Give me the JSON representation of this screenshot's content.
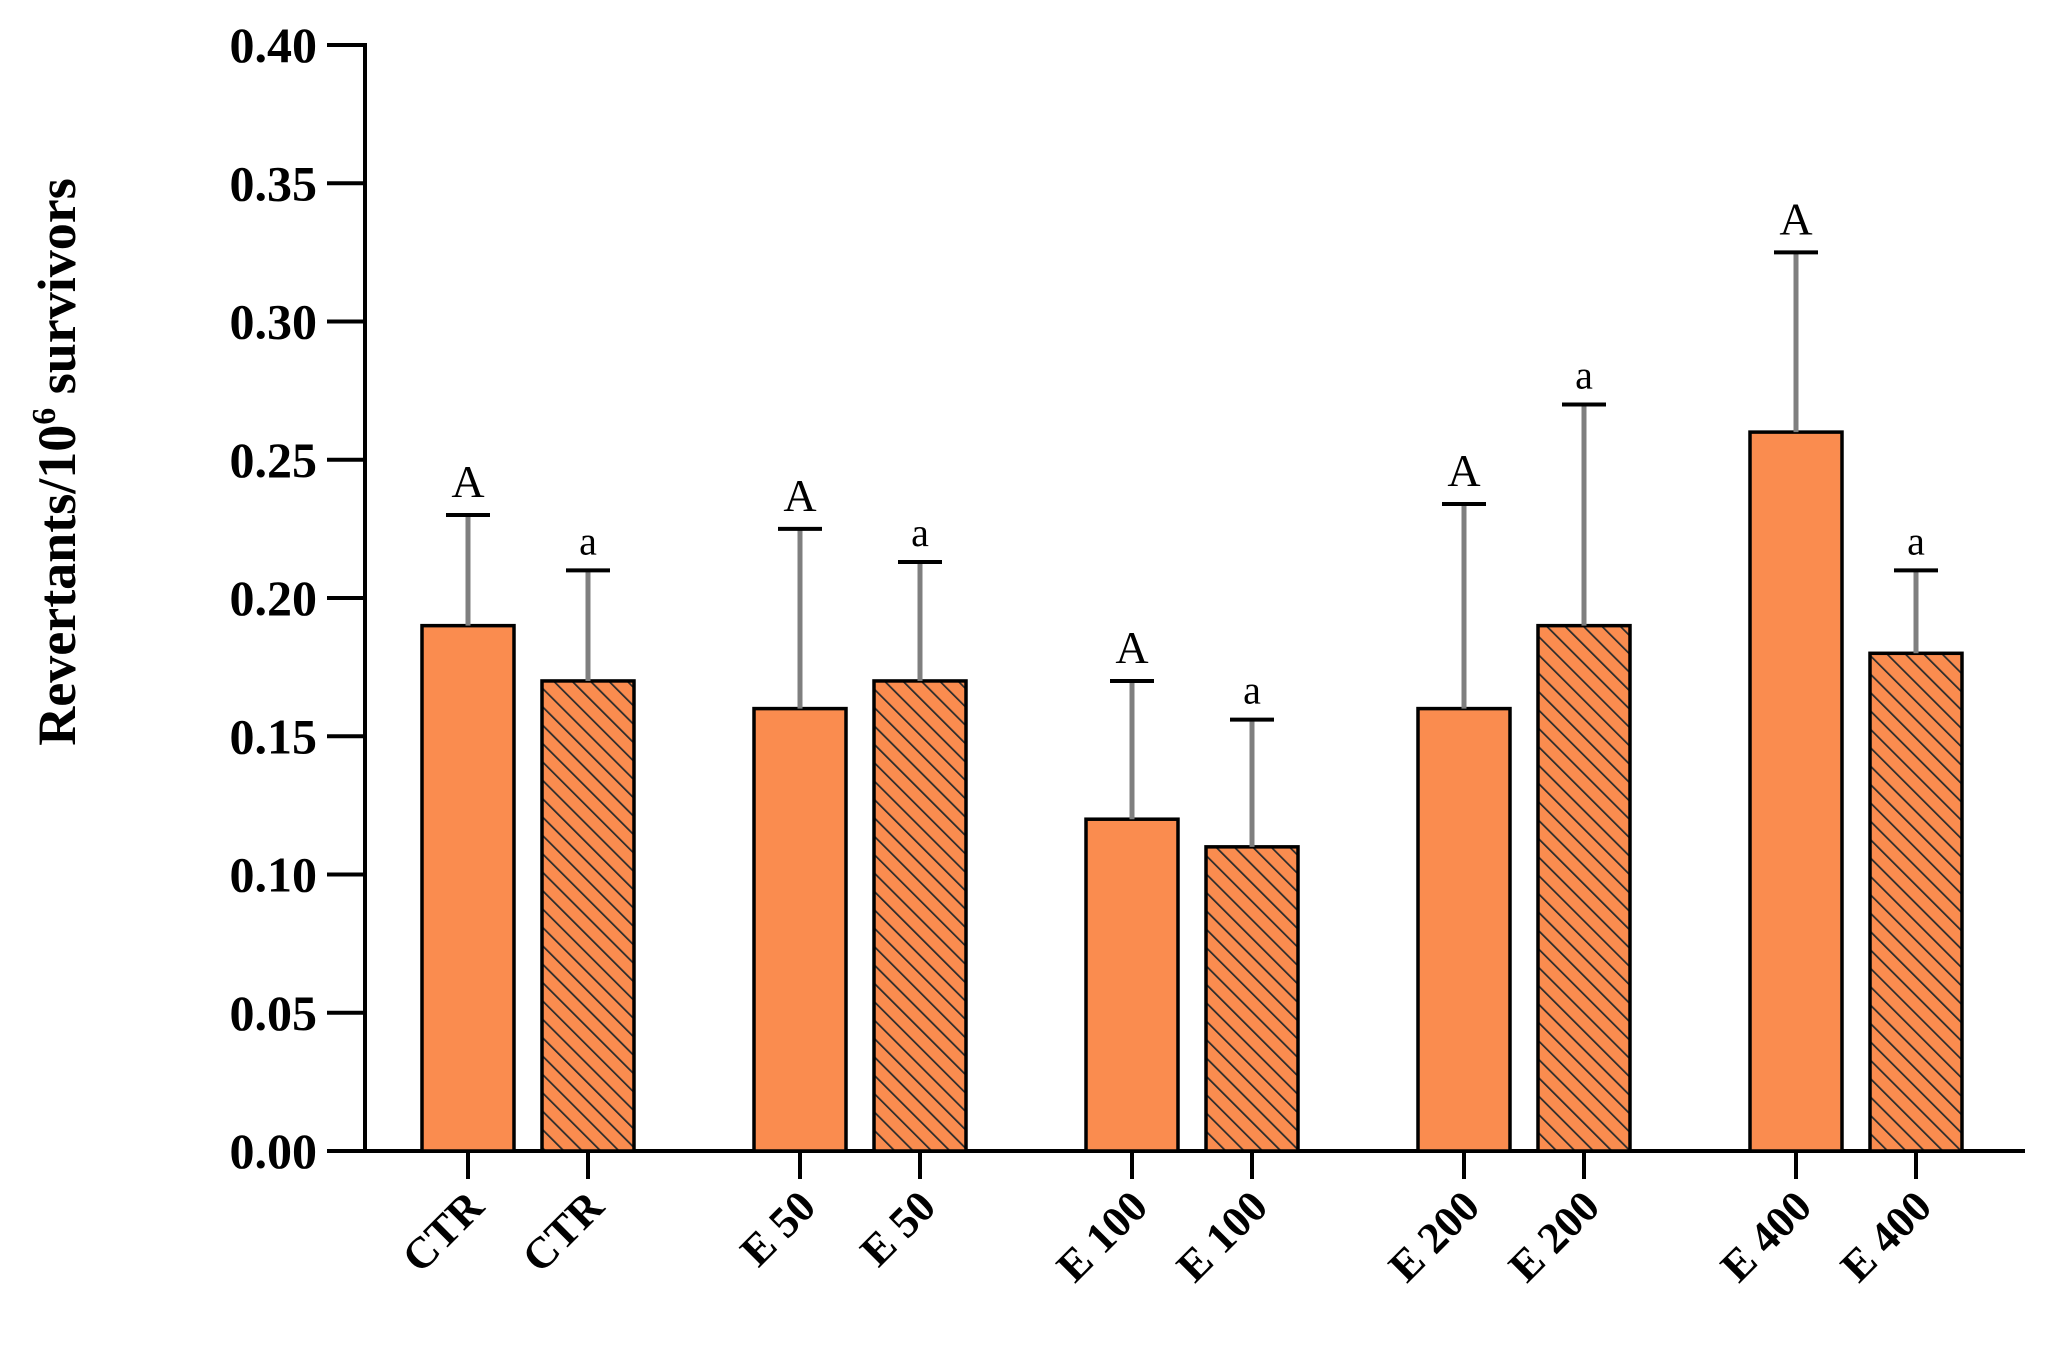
{
  "chart_data": {
    "type": "bar",
    "title": "",
    "xlabel": "",
    "ylabel": {
      "text": "Revertants/10",
      "superscript": "6",
      "suffix": " survivors"
    },
    "ylim": [
      0,
      0.4
    ],
    "yticks": [
      "0.00",
      "0.05",
      "0.10",
      "0.15",
      "0.20",
      "0.25",
      "0.30",
      "0.35",
      "0.40"
    ],
    "grid": false,
    "bar_color": "#fa8c4f",
    "hatch_color": "#2b2b2b",
    "error_color": "#7f7f7f",
    "bars": [
      {
        "category": "CTR",
        "value": 0.19,
        "error": 0.04,
        "label": "A",
        "hatched": false
      },
      {
        "category": "CTR",
        "value": 0.17,
        "error": 0.04,
        "label": "a",
        "hatched": true
      },
      {
        "category": "E 50",
        "value": 0.16,
        "error": 0.065,
        "label": "A",
        "hatched": false
      },
      {
        "category": "E 50",
        "value": 0.17,
        "error": 0.043,
        "label": "a",
        "hatched": true
      },
      {
        "category": "E 100",
        "value": 0.12,
        "error": 0.05,
        "label": "A",
        "hatched": false
      },
      {
        "category": "E 100",
        "value": 0.11,
        "error": 0.046,
        "label": "a",
        "hatched": true
      },
      {
        "category": "E 200",
        "value": 0.16,
        "error": 0.074,
        "label": "A",
        "hatched": false
      },
      {
        "category": "E 200",
        "value": 0.19,
        "error": 0.08,
        "label": "a",
        "hatched": true
      },
      {
        "category": "E 400",
        "value": 0.26,
        "error": 0.065,
        "label": "A",
        "hatched": false
      },
      {
        "category": "E 400",
        "value": 0.18,
        "error": 0.03,
        "label": "a",
        "hatched": true
      }
    ]
  }
}
